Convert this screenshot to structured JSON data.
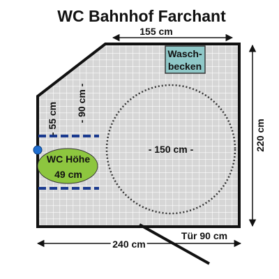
{
  "title": "WC Bahnhof Farchant",
  "dimensions": {
    "top_width": "155 cm",
    "right_depth": "220 cm",
    "bottom_width": "240 cm",
    "circle": "- 150 cm -",
    "side_55": "- 55 cm",
    "side_90": "- 90 cm -",
    "door": "Tür 90 cm"
  },
  "sink": {
    "line1": "Wasch-",
    "line2": "becken"
  },
  "toilet": {
    "line1": "WC Höhe",
    "line2": "49 cm"
  },
  "colors": {
    "floor": "#d6d6d6",
    "grid": "#ffffff",
    "wall": "#111111",
    "sink_fill": "#8fc8c8",
    "toilet_fill": "#8dc63f",
    "grab_bar": "#1a3a8f",
    "grab_dot": "#1f6fd1",
    "circle": "#333333"
  }
}
